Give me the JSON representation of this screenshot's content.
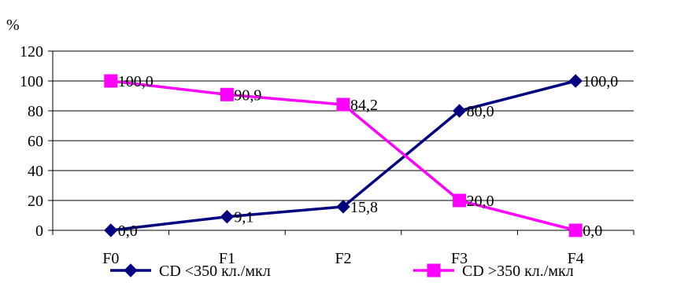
{
  "chart_data": {
    "type": "line",
    "title": "",
    "ylabel": "%",
    "xlabel": "",
    "categories": [
      "F0",
      "F1",
      "F2",
      "F3",
      "F4"
    ],
    "ylim": [
      0,
      120
    ],
    "yticks": [
      0,
      20,
      40,
      60,
      80,
      100,
      120
    ],
    "grid": true,
    "legend_position": "bottom",
    "series": [
      {
        "name": "CD <350 кл./мкл",
        "values": [
          0.0,
          9.1,
          15.8,
          80.0,
          100.0
        ],
        "labels": [
          "0,0",
          "9,1",
          "15,8",
          "80,0",
          "100,0"
        ],
        "color": "#000080",
        "marker": "diamond"
      },
      {
        "name": "CD >350 кл./мкл",
        "values": [
          100.0,
          90.9,
          84.2,
          20.0,
          0.0
        ],
        "labels": [
          "100,0",
          "90,9",
          "84,2",
          "20,0",
          "0,0"
        ],
        "color": "#FF00FF",
        "marker": "square"
      }
    ]
  }
}
